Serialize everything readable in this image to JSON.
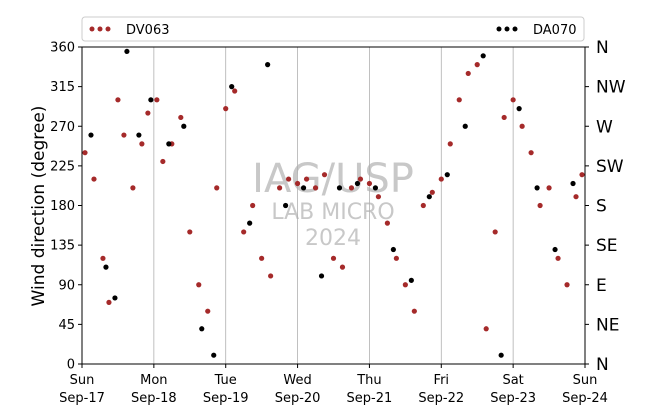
{
  "chart_data": {
    "type": "scatter",
    "title": "",
    "xlabel": "",
    "ylabel": "Wind direction (degree)",
    "ylim": [
      0,
      360
    ],
    "xlim": [
      "2017-09-17",
      "2017-09-24"
    ],
    "yticks": [
      0,
      45,
      90,
      135,
      180,
      225,
      270,
      315,
      360
    ],
    "xticks": [
      {
        "day": "Sun",
        "date": "Sep-17"
      },
      {
        "day": "Mon",
        "date": "Sep-18"
      },
      {
        "day": "Tue",
        "date": "Sep-19"
      },
      {
        "day": "Wed",
        "date": "Sep-20"
      },
      {
        "day": "Thu",
        "date": "Sep-21"
      },
      {
        "day": "Fri",
        "date": "Sep-22"
      },
      {
        "day": "Sat",
        "date": "Sep-23"
      },
      {
        "day": "Sun",
        "date": "Sep-24"
      }
    ],
    "right_axis_labels": [
      {
        "value": 0,
        "label": "N"
      },
      {
        "value": 45,
        "label": "NE"
      },
      {
        "value": 90,
        "label": "E"
      },
      {
        "value": 135,
        "label": "SE"
      },
      {
        "value": 180,
        "label": "S"
      },
      {
        "value": 225,
        "label": "SW"
      },
      {
        "value": 270,
        "label": "W"
      },
      {
        "value": 315,
        "label": "NW"
      },
      {
        "value": 360,
        "label": "N"
      }
    ],
    "grid": "vertical",
    "legend": "top",
    "watermark": [
      "IAG/USP",
      "LAB MICRO",
      "2024"
    ],
    "series": [
      {
        "name": "DV063",
        "color": "#a52a2a",
        "x": [
          "2017-09-17 01:00",
          "2017-09-17 04:00",
          "2017-09-17 07:00",
          "2017-09-17 09:00",
          "2017-09-17 12:00",
          "2017-09-17 14:00",
          "2017-09-17 17:00",
          "2017-09-17 20:00",
          "2017-09-17 22:00",
          "2017-09-18 01:00",
          "2017-09-18 03:00",
          "2017-09-18 06:00",
          "2017-09-18 09:00",
          "2017-09-18 12:00",
          "2017-09-18 15:00",
          "2017-09-18 18:00",
          "2017-09-18 21:00",
          "2017-09-19 00:00",
          "2017-09-19 03:00",
          "2017-09-19 06:00",
          "2017-09-19 09:00",
          "2017-09-19 12:00",
          "2017-09-19 15:00",
          "2017-09-19 18:00",
          "2017-09-19 21:00",
          "2017-09-20 00:00",
          "2017-09-20 03:00",
          "2017-09-20 06:00",
          "2017-09-20 09:00",
          "2017-09-20 12:00",
          "2017-09-20 15:00",
          "2017-09-20 18:00",
          "2017-09-20 21:00",
          "2017-09-21 00:00",
          "2017-09-21 03:00",
          "2017-09-21 06:00",
          "2017-09-21 09:00",
          "2017-09-21 12:00",
          "2017-09-21 15:00",
          "2017-09-21 18:00",
          "2017-09-21 21:00",
          "2017-09-22 00:00",
          "2017-09-22 03:00",
          "2017-09-22 06:00",
          "2017-09-22 09:00",
          "2017-09-22 12:00",
          "2017-09-22 15:00",
          "2017-09-22 18:00",
          "2017-09-22 21:00",
          "2017-09-23 00:00",
          "2017-09-23 03:00",
          "2017-09-23 06:00",
          "2017-09-23 09:00",
          "2017-09-23 12:00",
          "2017-09-23 15:00",
          "2017-09-23 18:00",
          "2017-09-23 21:00",
          "2017-09-23 23:00"
        ],
        "y": [
          240,
          210,
          120,
          70,
          300,
          260,
          200,
          250,
          285,
          300,
          230,
          250,
          280,
          150,
          90,
          60,
          200,
          290,
          310,
          150,
          180,
          120,
          100,
          200,
          210,
          205,
          210,
          200,
          215,
          120,
          110,
          200,
          210,
          205,
          190,
          160,
          120,
          90,
          60,
          180,
          195,
          210,
          250,
          300,
          330,
          340,
          40,
          150,
          280,
          300,
          270,
          240,
          180,
          200,
          120,
          90,
          190,
          215
        ]
      },
      {
        "name": "DA070",
        "color": "#000000",
        "x": [
          "2017-09-17 03:00",
          "2017-09-17 08:00",
          "2017-09-17 11:00",
          "2017-09-17 15:00",
          "2017-09-17 19:00",
          "2017-09-17 23:00",
          "2017-09-18 05:00",
          "2017-09-18 10:00",
          "2017-09-18 16:00",
          "2017-09-18 20:00",
          "2017-09-19 02:00",
          "2017-09-19 08:00",
          "2017-09-19 14:00",
          "2017-09-19 20:00",
          "2017-09-20 02:00",
          "2017-09-20 08:00",
          "2017-09-20 14:00",
          "2017-09-20 20:00",
          "2017-09-21 02:00",
          "2017-09-21 08:00",
          "2017-09-21 14:00",
          "2017-09-21 20:00",
          "2017-09-22 02:00",
          "2017-09-22 08:00",
          "2017-09-22 14:00",
          "2017-09-22 20:00",
          "2017-09-23 02:00",
          "2017-09-23 08:00",
          "2017-09-23 14:00",
          "2017-09-23 20:00"
        ],
        "y": [
          260,
          110,
          75,
          355,
          260,
          300,
          250,
          270,
          40,
          10,
          315,
          160,
          340,
          180,
          200,
          100,
          200,
          205,
          200,
          130,
          95,
          190,
          215,
          270,
          350,
          10,
          290,
          200,
          130,
          205
        ]
      }
    ]
  }
}
